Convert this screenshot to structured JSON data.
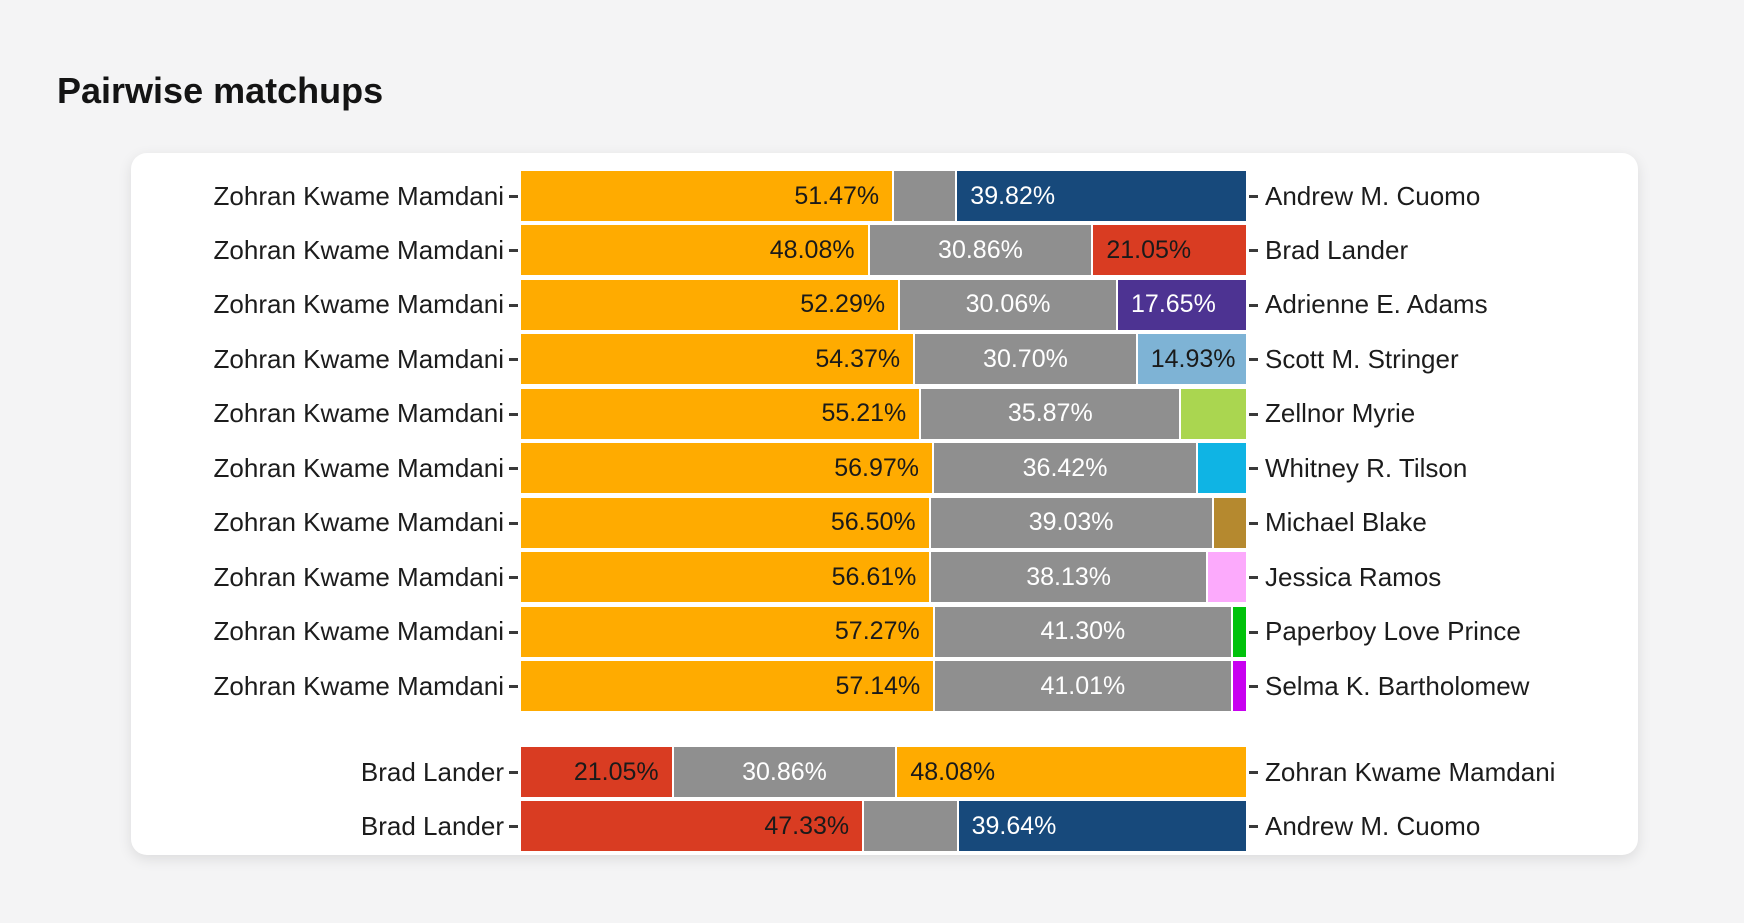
{
  "chart_data": {
    "type": "bar",
    "orientation": "horizontal",
    "stacked": true,
    "title": "Pairwise matchups",
    "x_range": [
      0,
      100
    ],
    "grid": false,
    "legend": "none",
    "colors": {
      "mamdani_orange": "#ffab00",
      "undecided_gray": "#8f8f8f",
      "cuomo_navy": "#17497b",
      "lander_red": "#d93c22",
      "adams_purple": "#4d3392",
      "stringer_lightblue": "#7eb3d5",
      "myrie_yellowgreen": "#aad650",
      "tilson_cyan": "#0fb4e4",
      "blake_goldenrod": "#b5892f",
      "ramos_pink": "#fcaafc",
      "prince_green": "#00c20b",
      "bartholomew_magenta": "#c800f0"
    },
    "rows": [
      {
        "left": "Zohran Kwame Mamdani",
        "right": "Andrew M. Cuomo",
        "group": 0,
        "segments": [
          {
            "value": 51.47,
            "label": "51.47%",
            "color": "#ffab00",
            "label_color": "#1a1a1a"
          },
          {
            "value": 8.71,
            "label": "",
            "color": "#8f8f8f",
            "label_color": "#ffffff"
          },
          {
            "value": 39.82,
            "label": "39.82%",
            "color": "#17497b",
            "label_color": "#ffffff"
          }
        ]
      },
      {
        "left": "Zohran Kwame Mamdani",
        "right": "Brad Lander",
        "group": 0,
        "segments": [
          {
            "value": 48.08,
            "label": "48.08%",
            "color": "#ffab00",
            "label_color": "#1a1a1a"
          },
          {
            "value": 30.86,
            "label": "30.86%",
            "color": "#8f8f8f",
            "label_color": "#ffffff"
          },
          {
            "value": 21.05,
            "label": "21.05%",
            "color": "#d93c22",
            "label_color": "#1a1a1a"
          }
        ]
      },
      {
        "left": "Zohran Kwame Mamdani",
        "right": "Adrienne E. Adams",
        "group": 0,
        "segments": [
          {
            "value": 52.29,
            "label": "52.29%",
            "color": "#ffab00",
            "label_color": "#1a1a1a"
          },
          {
            "value": 30.06,
            "label": "30.06%",
            "color": "#8f8f8f",
            "label_color": "#ffffff"
          },
          {
            "value": 17.65,
            "label": "17.65%",
            "color": "#4d3392",
            "label_color": "#ffffff"
          }
        ]
      },
      {
        "left": "Zohran Kwame Mamdani",
        "right": "Scott M. Stringer",
        "group": 0,
        "segments": [
          {
            "value": 54.37,
            "label": "54.37%",
            "color": "#ffab00",
            "label_color": "#1a1a1a"
          },
          {
            "value": 30.7,
            "label": "30.70%",
            "color": "#8f8f8f",
            "label_color": "#ffffff"
          },
          {
            "value": 14.93,
            "label": "14.93%",
            "color": "#7eb3d5",
            "label_color": "#1a1a1a"
          }
        ]
      },
      {
        "left": "Zohran Kwame Mamdani",
        "right": "Zellnor Myrie",
        "group": 0,
        "segments": [
          {
            "value": 55.21,
            "label": "55.21%",
            "color": "#ffab00",
            "label_color": "#1a1a1a"
          },
          {
            "value": 35.87,
            "label": "35.87%",
            "color": "#8f8f8f",
            "label_color": "#ffffff"
          },
          {
            "value": 8.92,
            "label": "",
            "color": "#aad650",
            "label_color": "#1a1a1a"
          }
        ]
      },
      {
        "left": "Zohran Kwame Mamdani",
        "right": "Whitney R. Tilson",
        "group": 0,
        "segments": [
          {
            "value": 56.97,
            "label": "56.97%",
            "color": "#ffab00",
            "label_color": "#1a1a1a"
          },
          {
            "value": 36.42,
            "label": "36.42%",
            "color": "#8f8f8f",
            "label_color": "#ffffff"
          },
          {
            "value": 6.61,
            "label": "",
            "color": "#0fb4e4",
            "label_color": "#1a1a1a"
          }
        ]
      },
      {
        "left": "Zohran Kwame Mamdani",
        "right": "Michael Blake",
        "group": 0,
        "segments": [
          {
            "value": 56.5,
            "label": "56.50%",
            "color": "#ffab00",
            "label_color": "#1a1a1a"
          },
          {
            "value": 39.03,
            "label": "39.03%",
            "color": "#8f8f8f",
            "label_color": "#ffffff"
          },
          {
            "value": 4.47,
            "label": "",
            "color": "#b5892f",
            "label_color": "#1a1a1a"
          }
        ]
      },
      {
        "left": "Zohran Kwame Mamdani",
        "right": "Jessica Ramos",
        "group": 0,
        "segments": [
          {
            "value": 56.61,
            "label": "56.61%",
            "color": "#ffab00",
            "label_color": "#1a1a1a"
          },
          {
            "value": 38.13,
            "label": "38.13%",
            "color": "#8f8f8f",
            "label_color": "#ffffff"
          },
          {
            "value": 5.26,
            "label": "",
            "color": "#fcaafc",
            "label_color": "#1a1a1a"
          }
        ]
      },
      {
        "left": "Zohran Kwame Mamdani",
        "right": "Paperboy Love Prince",
        "group": 0,
        "segments": [
          {
            "value": 57.27,
            "label": "57.27%",
            "color": "#ffab00",
            "label_color": "#1a1a1a"
          },
          {
            "value": 41.3,
            "label": "41.30%",
            "color": "#8f8f8f",
            "label_color": "#ffffff"
          },
          {
            "value": 1.43,
            "label": "",
            "color": "#00c20b",
            "label_color": "#1a1a1a"
          }
        ]
      },
      {
        "left": "Zohran Kwame Mamdani",
        "right": "Selma K. Bartholomew",
        "group": 0,
        "segments": [
          {
            "value": 57.14,
            "label": "57.14%",
            "color": "#ffab00",
            "label_color": "#1a1a1a"
          },
          {
            "value": 41.01,
            "label": "41.01%",
            "color": "#8f8f8f",
            "label_color": "#ffffff"
          },
          {
            "value": 1.85,
            "label": "",
            "color": "#c800f0",
            "label_color": "#1a1a1a"
          }
        ]
      },
      {
        "left": "Brad Lander",
        "right": "Zohran Kwame Mamdani",
        "group": 1,
        "segments": [
          {
            "value": 21.05,
            "label": "21.05%",
            "color": "#d93c22",
            "label_color": "#1a1a1a"
          },
          {
            "value": 30.86,
            "label": "30.86%",
            "color": "#8f8f8f",
            "label_color": "#ffffff"
          },
          {
            "value": 48.08,
            "label": "48.08%",
            "color": "#ffab00",
            "label_color": "#1a1a1a"
          }
        ]
      },
      {
        "left": "Brad Lander",
        "right": "Andrew M. Cuomo",
        "group": 1,
        "segments": [
          {
            "value": 47.33,
            "label": "47.33%",
            "color": "#d93c22",
            "label_color": "#1a1a1a"
          },
          {
            "value": 13.03,
            "label": "",
            "color": "#8f8f8f",
            "label_color": "#ffffff"
          },
          {
            "value": 39.64,
            "label": "39.64%",
            "color": "#17497b",
            "label_color": "#ffffff"
          }
        ]
      }
    ]
  }
}
